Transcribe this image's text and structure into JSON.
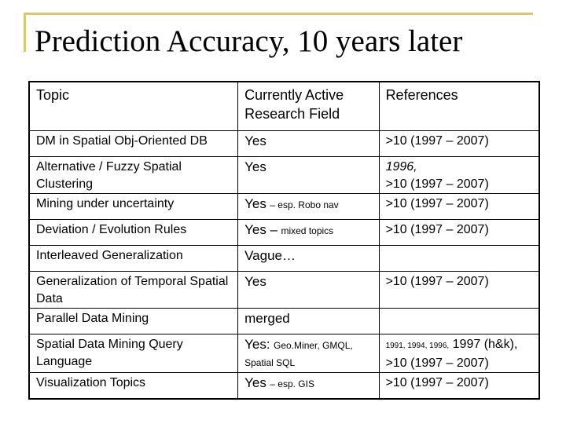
{
  "slide": {
    "title": "Prediction Accuracy, 10 years later",
    "accent_color": "#d9c86b"
  },
  "table": {
    "headers": [
      "Topic",
      "Currently Active Research Field",
      "References"
    ],
    "rows": [
      {
        "topic": "DM in Spatial Obj-Oriented DB",
        "active": "Yes",
        "active_note": "",
        "refs_line1": ">10 (1997 – 2007)",
        "refs_line2": ""
      },
      {
        "topic": "Alternative / Fuzzy Spatial Clustering",
        "active": "Yes",
        "active_note": "",
        "refs_line1": "1996,",
        "refs_line2": ">10 (1997 – 2007)"
      },
      {
        "topic": "Mining under uncertainty",
        "active": "Yes",
        "active_note": "– esp. Robo nav",
        "refs_line1": ">10 (1997 – 2007)",
        "refs_line2": ""
      },
      {
        "topic": "Deviation / Evolution Rules",
        "active": "Yes –",
        "active_note": "mixed topics",
        "refs_line1": ">10 (1997 – 2007)",
        "refs_line2": ""
      },
      {
        "topic": "Interleaved Generalization",
        "active": "Vague…",
        "active_note": "",
        "refs_line1": "",
        "refs_line2": ""
      },
      {
        "topic": "Generalization of Temporal Spatial Data",
        "active": "Yes",
        "active_note": "",
        "refs_line1": ">10 (1997 – 2007)",
        "refs_line2": ""
      },
      {
        "topic": "Parallel Data Mining",
        "active": "merged",
        "active_note": "",
        "refs_line1": "",
        "refs_line2": ""
      },
      {
        "topic": "Spatial Data Mining Query Language",
        "active": "Yes:",
        "active_note": "Geo.Miner, GMQL,",
        "active_note2": "Spatial SQL",
        "refs_small": "1991, 1994, 1996,",
        "refs_line1": "1997 (h&k),",
        "refs_line2": ">10 (1997 – 2007)"
      },
      {
        "topic": "Visualization Topics",
        "active": "Yes",
        "active_note": "– esp. GIS",
        "refs_line1": ">10 (1997 – 2007)",
        "refs_line2": ""
      }
    ]
  }
}
